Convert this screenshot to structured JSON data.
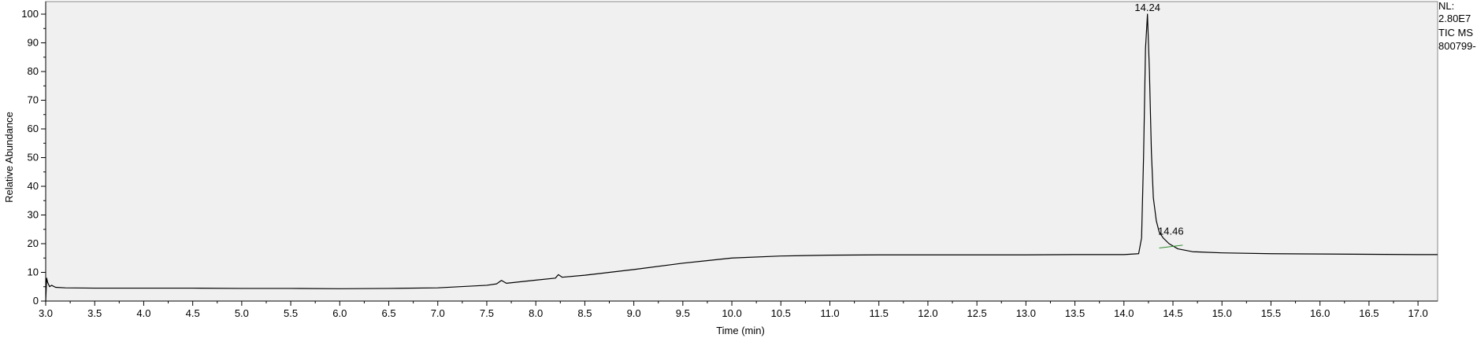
{
  "chart_data": {
    "type": "line",
    "xlabel": "Time (min)",
    "ylabel": "Relative Abundance",
    "xlim": [
      3.0,
      17.2
    ],
    "ylim": [
      0,
      100
    ],
    "x_ticks": [
      "3.0",
      "3.5",
      "4.0",
      "4.5",
      "5.0",
      "5.5",
      "6.0",
      "6.5",
      "7.0",
      "7.5",
      "8.0",
      "8.5",
      "9.0",
      "9.5",
      "10.0",
      "10.5",
      "11.0",
      "11.5",
      "12.0",
      "12.5",
      "13.0",
      "13.5",
      "14.0",
      "14.5",
      "15.0",
      "15.5",
      "16.0",
      "16.5",
      "17.0"
    ],
    "y_ticks": [
      "0",
      "10",
      "20",
      "30",
      "40",
      "50",
      "60",
      "70",
      "80",
      "90",
      "100"
    ],
    "peak_labels": [
      {
        "x": 14.24,
        "y": 100,
        "text": "14.24"
      },
      {
        "x": 14.46,
        "y": 21.5,
        "text": "14.46"
      }
    ],
    "series": [
      {
        "color": "#000000",
        "x": [
          3.0,
          3.01,
          3.02,
          3.04,
          3.06,
          3.1,
          3.2,
          3.5,
          4.0,
          4.5,
          5.0,
          5.5,
          6.0,
          6.5,
          7.0,
          7.5,
          7.6,
          7.65,
          7.7,
          8.0,
          8.2,
          8.23,
          8.27,
          8.5,
          8.75,
          9.0,
          9.5,
          10.0,
          10.5,
          11.0,
          11.5,
          12.0,
          12.5,
          13.0,
          13.5,
          14.0,
          14.15,
          14.18,
          14.2,
          14.22,
          14.24,
          14.26,
          14.28,
          14.3,
          14.33,
          14.36,
          14.4,
          14.46,
          14.55,
          14.7,
          15.0,
          15.5,
          16.0,
          16.5,
          17.0,
          17.2
        ],
        "y": [
          0,
          8,
          6.5,
          5.0,
          5.5,
          4.8,
          4.6,
          4.5,
          4.5,
          4.5,
          4.4,
          4.4,
          4.3,
          4.4,
          4.6,
          5.5,
          6.0,
          7.2,
          6.2,
          7.3,
          8.0,
          9.2,
          8.3,
          9.0,
          10.0,
          11.0,
          13.2,
          15.0,
          15.7,
          16.0,
          16.1,
          16.1,
          16.1,
          16.1,
          16.2,
          16.2,
          16.5,
          22,
          50,
          88,
          100,
          80,
          52,
          36,
          28,
          24,
          22,
          20,
          18.2,
          17.2,
          16.8,
          16.5,
          16.4,
          16.3,
          16.2,
          16.2
        ]
      }
    ]
  },
  "info": {
    "line1": "NL:",
    "line2": "2.80E7",
    "line3": "TIC  MS",
    "line4": "800799-"
  }
}
